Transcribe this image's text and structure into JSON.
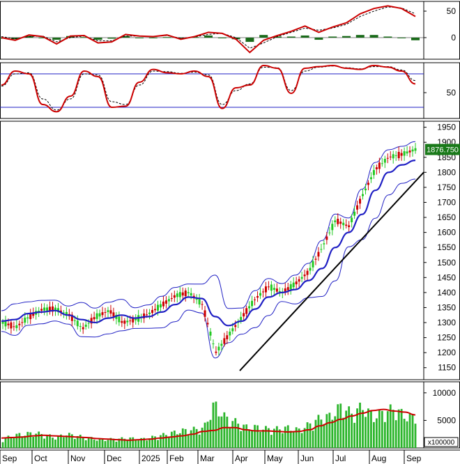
{
  "colors": {
    "price_up": "#22c922",
    "price_down": "#cc0000",
    "sma": "#1f1fc4",
    "bands": "#1f1fc4",
    "trendline": "#000000",
    "macd_line": "#cc0000",
    "macd_signal": "#000000",
    "macd_hist": "#1a6b1a",
    "stoch_k": "#cc0000",
    "stoch_d": "#000000",
    "stoch_level": "#1f1fc4",
    "volume_bar": "#2bb52b",
    "volume_ma": "#cc0000",
    "last_price_badge": "#1a7a1a"
  },
  "price_tag": "1876.750",
  "volume_unit": "x100000",
  "chart_data": [
    {
      "type": "line",
      "panel": "MACD",
      "y_ticks": [
        "50",
        "0"
      ],
      "ylim": [
        -30,
        70
      ],
      "series": [
        {
          "values": [
            0,
            -5,
            5,
            2,
            -12,
            3,
            4,
            -10,
            -8,
            6,
            3,
            2,
            5,
            -3,
            2,
            10,
            8,
            -3,
            -28,
            -5,
            4,
            12,
            22,
            10,
            20,
            28,
            45,
            55,
            60,
            55,
            40
          ]
        },
        {
          "values": [
            2,
            -2,
            2,
            3,
            -8,
            0,
            3,
            -6,
            -6,
            3,
            3,
            2,
            4,
            -1,
            1,
            6,
            8,
            0,
            -20,
            -10,
            2,
            10,
            18,
            14,
            18,
            25,
            40,
            50,
            58,
            56,
            45
          ]
        },
        {
          "values": [
            -2,
            -3,
            3,
            -1,
            -4,
            3,
            1,
            -4,
            -2,
            3,
            0,
            0,
            1,
            -2,
            1,
            4,
            0,
            -3,
            -8,
            5,
            2,
            2,
            4,
            -4,
            2,
            3,
            5,
            5,
            2,
            -1,
            -5
          ]
        }
      ]
    },
    {
      "type": "line",
      "panel": "Stochastic",
      "y_ticks": [
        "50"
      ],
      "ylim": [
        0,
        100
      ],
      "levels": [
        80,
        20
      ],
      "series": [
        {
          "values": [
            60,
            85,
            80,
            25,
            12,
            40,
            85,
            75,
            20,
            22,
            65,
            88,
            82,
            80,
            85,
            75,
            18,
            55,
            60,
            95,
            90,
            45,
            90,
            93,
            95,
            90,
            88,
            95,
            92,
            85,
            62
          ]
        },
        {
          "values": [
            58,
            80,
            82,
            35,
            15,
            35,
            80,
            78,
            30,
            25,
            60,
            85,
            84,
            81,
            83,
            78,
            25,
            50,
            62,
            92,
            91,
            50,
            85,
            92,
            94,
            91,
            89,
            93,
            93,
            87,
            68
          ]
        }
      ]
    },
    {
      "type": "line",
      "panel": "Price",
      "y_ticks": [
        "1950",
        "1900",
        "1850",
        "1800",
        "1750",
        "1700",
        "1650",
        "1600",
        "1550",
        "1500",
        "1450",
        "1400",
        "1350",
        "1300",
        "1250",
        "1200",
        "1150"
      ],
      "ylim": [
        1110,
        1970
      ],
      "x_ticks": [
        "Sep",
        "Oct",
        "Nov",
        "Dec",
        "2025",
        "Feb",
        "Mar",
        "Apr",
        "May",
        "Jun",
        "Jul",
        "Aug",
        "Sep"
      ],
      "trendline": {
        "from": [
          "Apr",
          1140
        ],
        "to": [
          "Sep",
          1800
        ]
      },
      "series": [
        {
          "values": [
            1300,
            1285,
            1320,
            1345,
            1345,
            1325,
            1280,
            1320,
            1340,
            1300,
            1310,
            1330,
            1360,
            1390,
            1400,
            1360,
            1200,
            1260,
            1320,
            1380,
            1420,
            1400,
            1430,
            1470,
            1550,
            1640,
            1620,
            1720,
            1810,
            1850,
            1860,
            1876
          ]
        },
        {
          "values": [
            1305,
            1310,
            1330,
            1335,
            1340,
            1325,
            1310,
            1300,
            1315,
            1325,
            1315,
            1320,
            1335,
            1360,
            1385,
            1380,
            1320,
            1290,
            1305,
            1345,
            1385,
            1400,
            1410,
            1440,
            1480,
            1550,
            1600,
            1660,
            1740,
            1800,
            1825,
            1840
          ]
        }
      ]
    },
    {
      "type": "bar",
      "panel": "Volume",
      "y_ticks": [
        "10000",
        "5000"
      ],
      "ylim": [
        0,
        12000
      ],
      "series": [
        {
          "values": [
            1500,
            2200,
            2400,
            2600,
            2300,
            1800,
            2400,
            2100,
            1800,
            1500,
            1500,
            1600,
            1700,
            1500,
            1800,
            2200,
            2600,
            3000,
            3200,
            3400,
            7600,
            5300,
            4500,
            3600,
            3600,
            3300,
            3300,
            3500,
            3100,
            4100,
            5200,
            5500,
            7300,
            5900,
            7200,
            5400,
            6200,
            6800,
            5600,
            5300
          ]
        },
        {
          "values": [
            1800,
            1900,
            2000,
            2200,
            2300,
            2200,
            2100,
            2000,
            1900,
            1700,
            1600,
            1500,
            1400,
            1500,
            1600,
            1800,
            2000,
            2200,
            2500,
            3000,
            3200,
            3700,
            3700,
            3300,
            3100,
            3100,
            3000,
            2900,
            3000,
            3300,
            4000,
            4600,
            5200,
            5800,
            6300,
            6800,
            7000,
            6700,
            6500,
            6000
          ]
        }
      ]
    }
  ]
}
